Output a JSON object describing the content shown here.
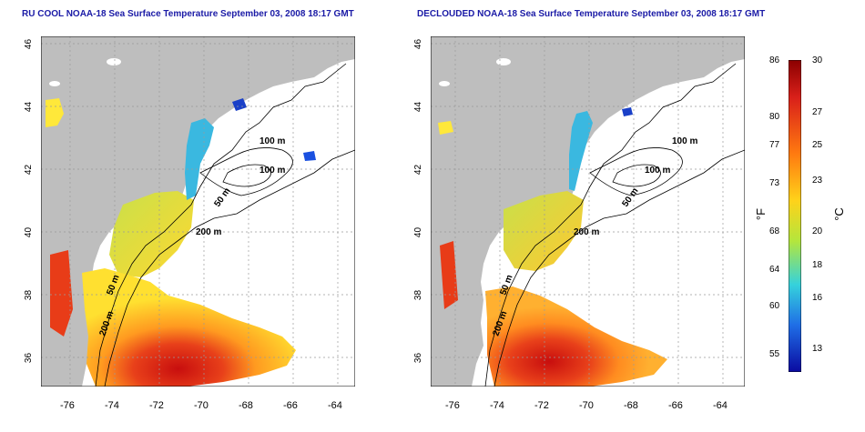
{
  "left_map": {
    "title": "RU COOL NOAA-18 Sea Surface Temperature September 03, 2008 18:17 GMT",
    "lat_ticks": [
      "46",
      "44",
      "42",
      "40",
      "38",
      "36"
    ],
    "lon_ticks": [
      "-76",
      "-74",
      "-72",
      "-70",
      "-68",
      "-66",
      "-64"
    ],
    "contour_labels": [
      "100 m",
      "100 m",
      "50 m",
      "200 m",
      "50 m",
      "200 m"
    ]
  },
  "right_map": {
    "title": "DECLOUDED NOAA-18 Sea Surface Temperature September 03, 2008 18:17 GMT",
    "lat_ticks": [
      "46",
      "44",
      "42",
      "40",
      "38",
      "36"
    ],
    "lon_ticks": [
      "-76",
      "-74",
      "-72",
      "-70",
      "-68",
      "-66",
      "-64"
    ],
    "contour_labels": [
      "100 m",
      "100 m",
      "50 m",
      "200 m",
      "50 m",
      "200 m"
    ]
  },
  "colorbar": {
    "fahrenheit_ticks": [
      "86",
      "80",
      "77",
      "73",
      "68",
      "64",
      "60",
      "55"
    ],
    "celsius_ticks": [
      "30",
      "27",
      "25",
      "23",
      "20",
      "18",
      "16",
      "13"
    ],
    "fahrenheit_unit": "°F",
    "celsius_unit": "°C",
    "colors": [
      "#8b0000",
      "#d9201a",
      "#ff7a10",
      "#ffd21a",
      "#b4e63c",
      "#35d2dc",
      "#1f6ee6",
      "#0a0aa0"
    ]
  },
  "colors": {
    "land": "#bebebe",
    "title": "#1a1aa6",
    "contour": "#000000",
    "grid": "#9a9a9a"
  }
}
